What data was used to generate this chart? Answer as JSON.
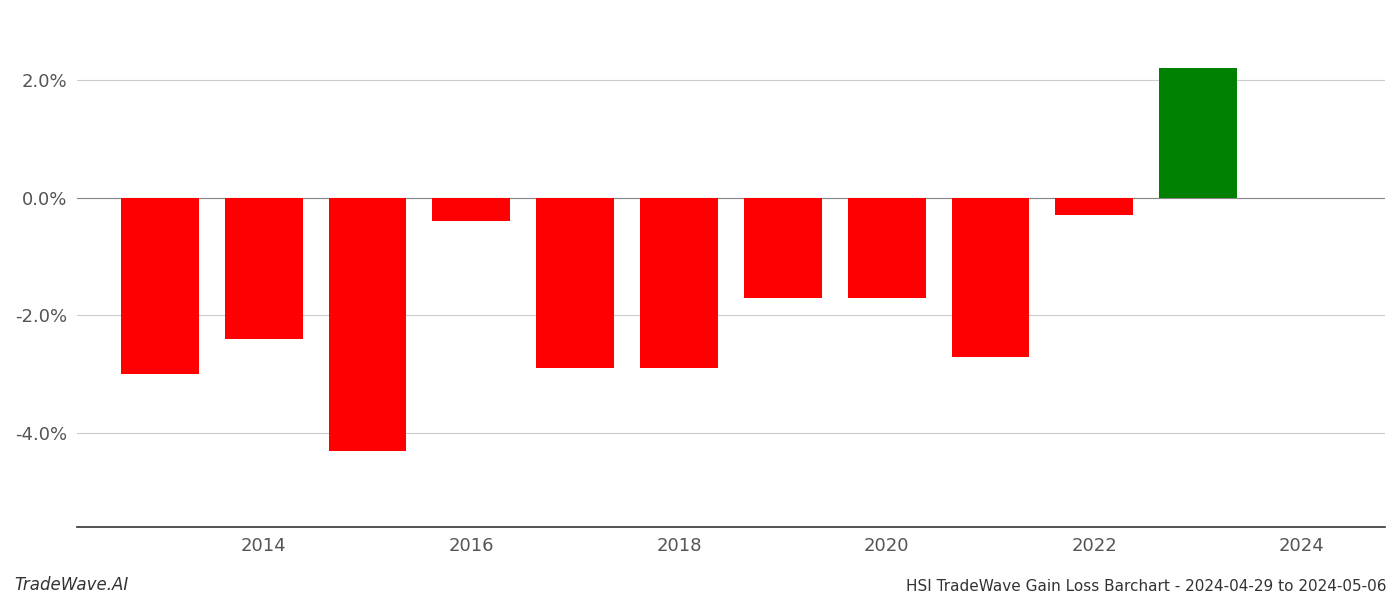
{
  "years": [
    2013,
    2014,
    2015,
    2016,
    2017,
    2018,
    2019,
    2020,
    2021,
    2022,
    2023
  ],
  "values": [
    -0.03,
    -0.024,
    -0.043,
    -0.004,
    -0.029,
    -0.029,
    -0.017,
    -0.017,
    -0.027,
    -0.003,
    0.022
  ],
  "colors": [
    "#ff0000",
    "#ff0000",
    "#ff0000",
    "#ff0000",
    "#ff0000",
    "#ff0000",
    "#ff0000",
    "#ff0000",
    "#ff0000",
    "#ff0000",
    "#008000"
  ],
  "title": "HSI TradeWave Gain Loss Barchart - 2024-04-29 to 2024-05-06",
  "watermark": "TradeWave.AI",
  "ylim_min": -0.056,
  "ylim_max": 0.03,
  "xlim_min": 2012.2,
  "xlim_max": 2024.8,
  "yticks": [
    -0.04,
    -0.02,
    0.0,
    0.02
  ],
  "xticks": [
    2014,
    2016,
    2018,
    2020,
    2022,
    2024
  ],
  "background_color": "#ffffff",
  "grid_color": "#cccccc",
  "axis_label_color": "#555555",
  "bar_width": 0.75,
  "tick_fontsize": 13,
  "watermark_fontsize": 12,
  "title_fontsize": 11
}
